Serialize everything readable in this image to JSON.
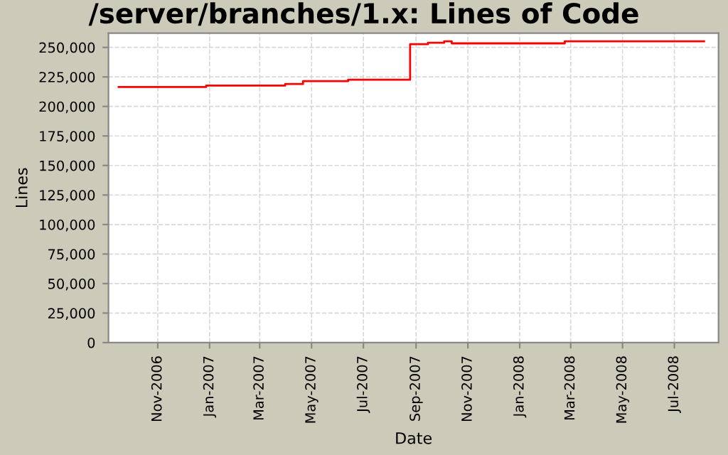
{
  "chart_data": {
    "type": "step",
    "title": "/server/branches/1.x: Lines of Code",
    "xlabel": "Date",
    "ylabel": "Lines",
    "x": [
      "2006-09-16",
      "2006-12-28",
      "2007-03-31",
      "2007-04-21",
      "2007-06-13",
      "2007-08-25",
      "2007-09-15",
      "2007-10-04",
      "2007-10-13",
      "2008-02-23",
      "2008-08-05"
    ],
    "series": [
      {
        "color": "#ff0000",
        "values": [
          216500,
          217700,
          219000,
          221400,
          222600,
          252700,
          253900,
          255100,
          253400,
          255100,
          255100
        ]
      }
    ],
    "xlim": [
      "2006-09-04",
      "2008-08-22"
    ],
    "xticks": [
      {
        "value": "2006-11-01",
        "label": "Nov-2006"
      },
      {
        "value": "2007-01-01",
        "label": "Jan-2007"
      },
      {
        "value": "2007-03-01",
        "label": "Mar-2007"
      },
      {
        "value": "2007-05-01",
        "label": "May-2007"
      },
      {
        "value": "2007-07-01",
        "label": "Jul-2007"
      },
      {
        "value": "2007-09-01",
        "label": "Sep-2007"
      },
      {
        "value": "2007-11-01",
        "label": "Nov-2007"
      },
      {
        "value": "2008-01-01",
        "label": "Jan-2008"
      },
      {
        "value": "2008-03-01",
        "label": "Mar-2008"
      },
      {
        "value": "2008-05-01",
        "label": "May-2008"
      },
      {
        "value": "2008-07-01",
        "label": "Jul-2008"
      }
    ],
    "ylim": [
      0,
      262000
    ],
    "yticks": [
      {
        "value": 0,
        "label": "0"
      },
      {
        "value": 25000,
        "label": "25,000"
      },
      {
        "value": 50000,
        "label": "50,000"
      },
      {
        "value": 75000,
        "label": "75,000"
      },
      {
        "value": 100000,
        "label": "100,000"
      },
      {
        "value": 125000,
        "label": "125,000"
      },
      {
        "value": 150000,
        "label": "150,000"
      },
      {
        "value": 175000,
        "label": "175,000"
      },
      {
        "value": 200000,
        "label": "200,000"
      },
      {
        "value": 225000,
        "label": "225,000"
      },
      {
        "value": 250000,
        "label": "250,000"
      }
    ],
    "grid": true,
    "line_style": "solid"
  }
}
